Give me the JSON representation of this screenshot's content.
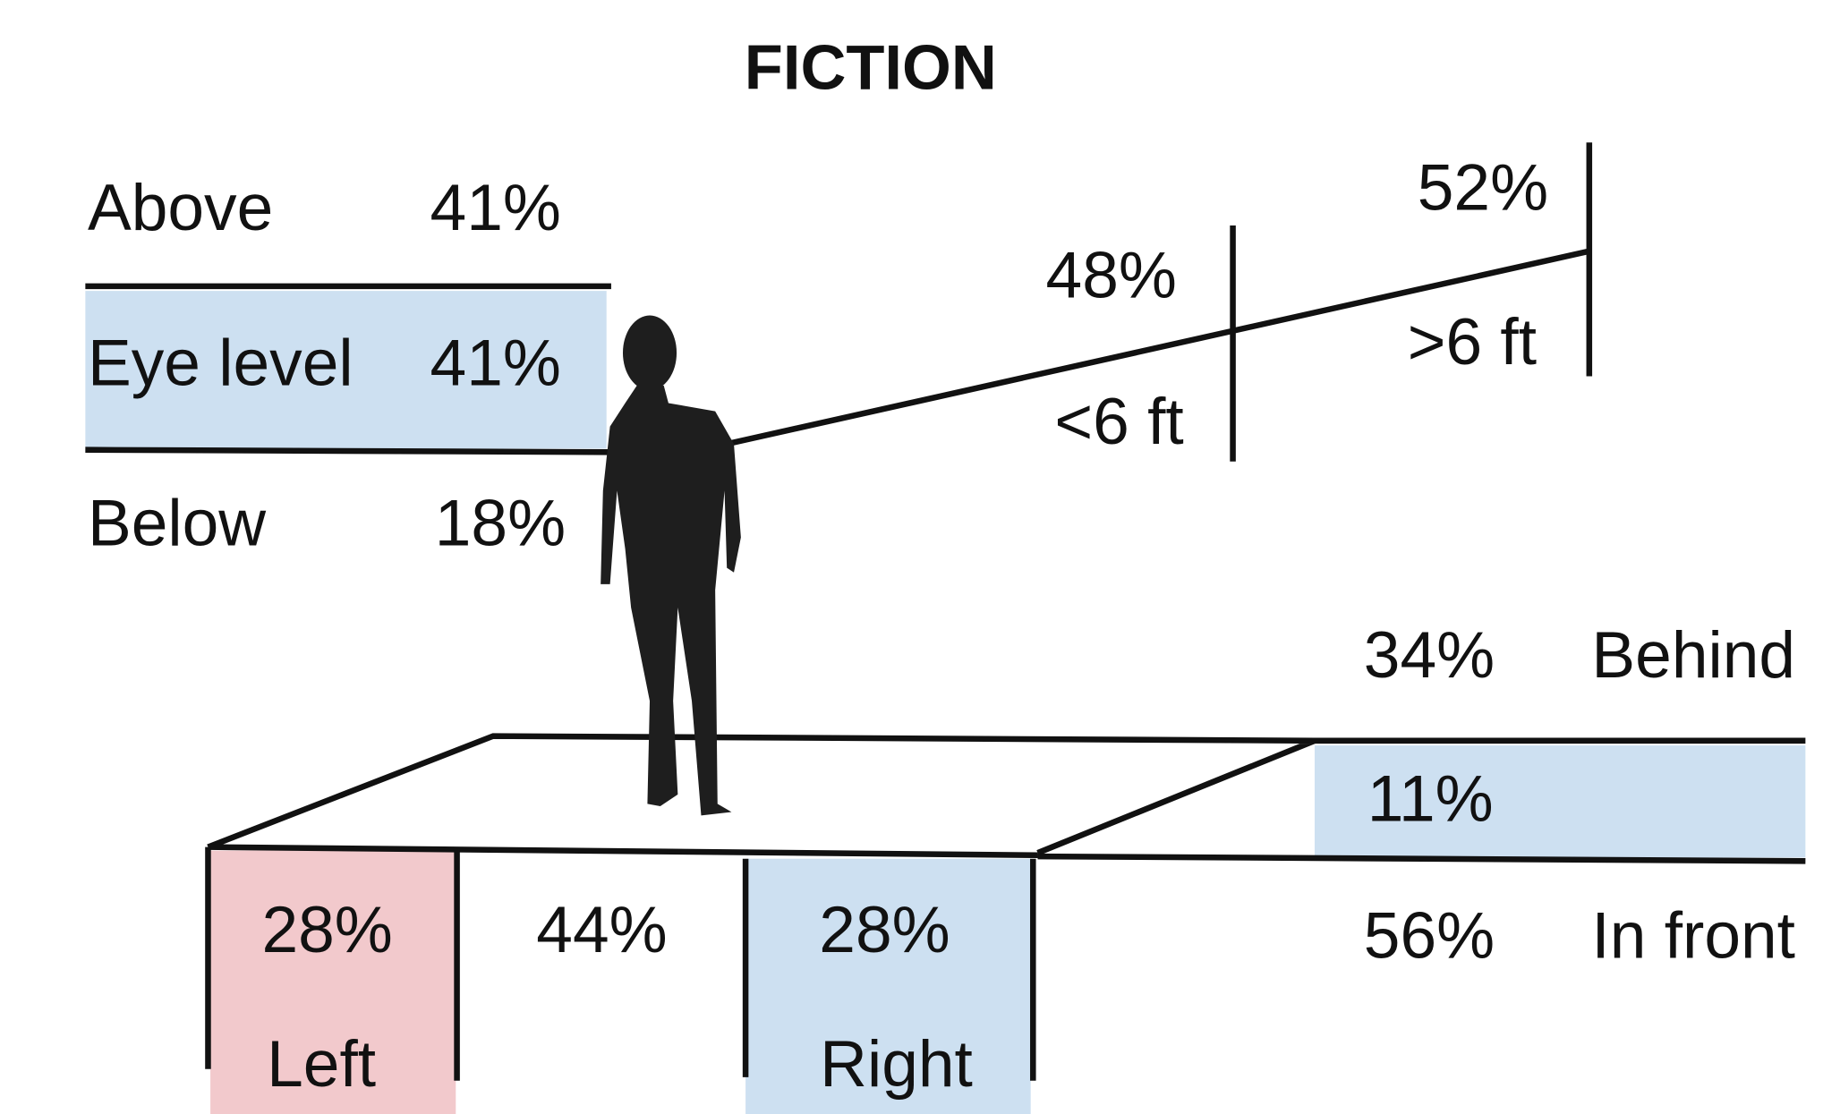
{
  "title": "FICTION",
  "height": {
    "above": {
      "label": "Above",
      "value": "41%"
    },
    "eye_level": {
      "label": "Eye level",
      "value": "41%"
    },
    "below": {
      "label": "Below",
      "value": "18%"
    }
  },
  "distance": {
    "near": {
      "label": "<6 ft",
      "value": "48%"
    },
    "far": {
      "label": ">6 ft",
      "value": "52%"
    }
  },
  "side": {
    "left": {
      "label": "Left",
      "value": "28%"
    },
    "center": {
      "value": "44%"
    },
    "right": {
      "label": "Right",
      "value": "28%"
    }
  },
  "depth": {
    "behind": {
      "label": "Behind",
      "value": "34%"
    },
    "middle": {
      "value": "11%"
    },
    "in_front": {
      "label": "In front",
      "value": "56%"
    }
  }
}
